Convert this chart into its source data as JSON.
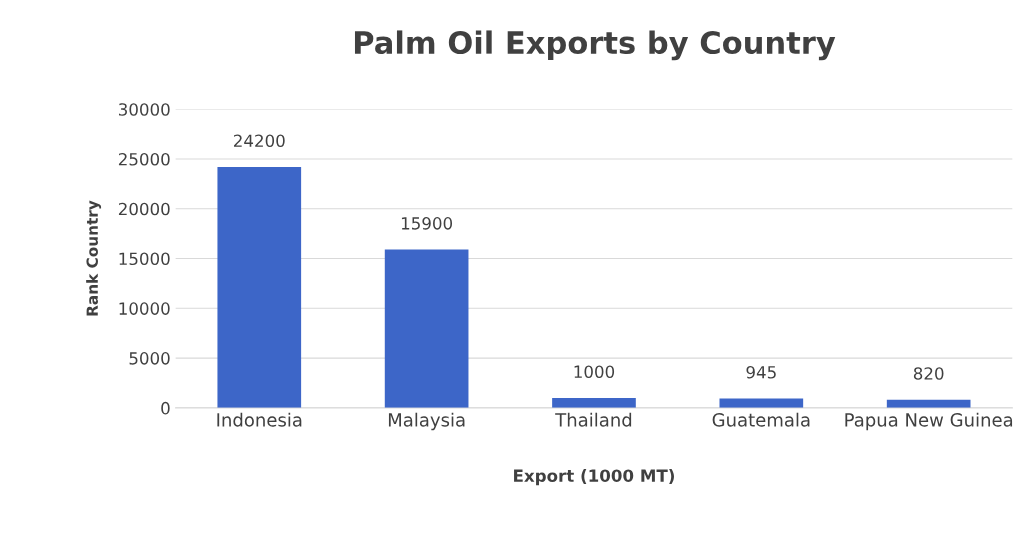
{
  "chart_data": {
    "type": "bar",
    "title": "Palm Oil Exports by Country",
    "xlabel": "Export (1000 MT)",
    "ylabel": "Rank Country",
    "categories": [
      "Indonesia",
      "Malaysia",
      "Thailand",
      "Guatemala",
      "Papua New Guinea"
    ],
    "values": [
      24200,
      15900,
      1000,
      945,
      820
    ],
    "color": "#3d66c8",
    "ylim": [
      0,
      30000
    ],
    "yticks": [
      0,
      5000,
      10000,
      15000,
      20000,
      25000,
      30000
    ],
    "grid": "y",
    "data_labels": true
  }
}
